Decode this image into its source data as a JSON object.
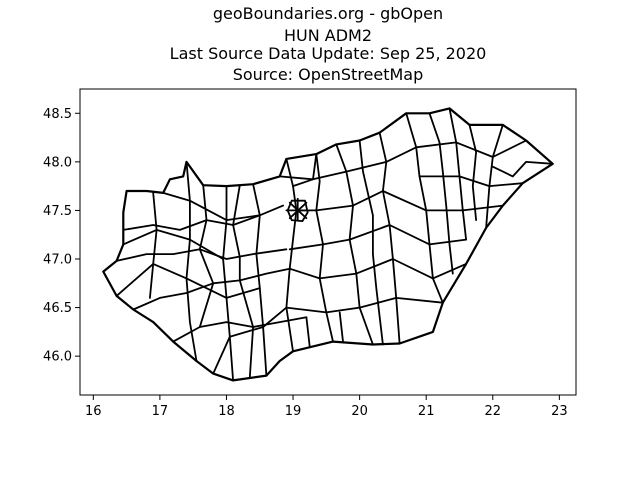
{
  "title_lines": [
    "geoBoundaries.org - gbOpen",
    "HUN ADM2",
    "Last Source Data Update: Sep 25, 2020",
    "Source: OpenStreetMap"
  ],
  "map": {
    "country": "HUN",
    "admin_level": "ADM2",
    "fill_color": "#ffffff",
    "stroke_color": "#000000"
  },
  "chart_data": {
    "type": "map",
    "xlim": [
      15.8,
      23.25
    ],
    "ylim": [
      45.6,
      48.75
    ],
    "x_ticks": [
      16,
      17,
      18,
      19,
      20,
      21,
      22,
      23
    ],
    "y_ticks": [
      46.0,
      46.5,
      47.0,
      47.5,
      48.0,
      48.5
    ],
    "x_tick_labels": [
      "16",
      "17",
      "18",
      "19",
      "20",
      "21",
      "22",
      "23"
    ],
    "y_tick_labels": [
      "46.0",
      "46.5",
      "47.0",
      "47.5",
      "48.0",
      "48.5"
    ],
    "outline": [
      [
        16.15,
        46.87
      ],
      [
        16.35,
        46.98
      ],
      [
        16.45,
        47.15
      ],
      [
        16.45,
        47.3
      ],
      [
        16.45,
        47.48
      ],
      [
        16.5,
        47.7
      ],
      [
        16.8,
        47.7
      ],
      [
        17.05,
        47.68
      ],
      [
        17.15,
        47.82
      ],
      [
        17.35,
        47.85
      ],
      [
        17.4,
        48.0
      ],
      [
        17.65,
        47.76
      ],
      [
        18.0,
        47.75
      ],
      [
        18.4,
        47.77
      ],
      [
        18.8,
        47.85
      ],
      [
        18.9,
        48.03
      ],
      [
        19.35,
        48.08
      ],
      [
        19.65,
        48.18
      ],
      [
        20.0,
        48.22
      ],
      [
        20.3,
        48.3
      ],
      [
        20.7,
        48.5
      ],
      [
        21.05,
        48.5
      ],
      [
        21.35,
        48.55
      ],
      [
        21.65,
        48.38
      ],
      [
        22.15,
        48.38
      ],
      [
        22.5,
        48.22
      ],
      [
        22.9,
        47.98
      ],
      [
        22.45,
        47.78
      ],
      [
        22.15,
        47.55
      ],
      [
        21.9,
        47.32
      ],
      [
        21.6,
        46.95
      ],
      [
        21.25,
        46.55
      ],
      [
        21.1,
        46.25
      ],
      [
        20.6,
        46.13
      ],
      [
        20.2,
        46.12
      ],
      [
        19.6,
        46.15
      ],
      [
        19.0,
        46.05
      ],
      [
        18.8,
        45.95
      ],
      [
        18.6,
        45.8
      ],
      [
        18.1,
        45.75
      ],
      [
        17.8,
        45.82
      ],
      [
        17.55,
        45.95
      ],
      [
        17.2,
        46.15
      ],
      [
        16.9,
        46.35
      ],
      [
        16.6,
        46.48
      ],
      [
        16.35,
        46.62
      ],
      [
        16.15,
        46.87
      ]
    ],
    "internal_boundaries": [
      [
        [
          16.45,
          47.3
        ],
        [
          16.9,
          47.35
        ],
        [
          17.3,
          47.3
        ],
        [
          17.7,
          47.4
        ],
        [
          18.1,
          47.35
        ],
        [
          18.5,
          47.45
        ],
        [
          18.85,
          47.55
        ]
      ],
      [
        [
          16.35,
          46.98
        ],
        [
          16.8,
          47.05
        ],
        [
          17.2,
          47.05
        ],
        [
          17.6,
          47.1
        ],
        [
          18.0,
          47.0
        ],
        [
          18.4,
          47.05
        ],
        [
          18.9,
          47.1
        ]
      ],
      [
        [
          16.6,
          46.48
        ],
        [
          17.0,
          46.6
        ],
        [
          17.4,
          46.65
        ],
        [
          17.8,
          46.75
        ],
        [
          18.2,
          46.78
        ],
        [
          18.6,
          46.85
        ],
        [
          18.95,
          46.9
        ]
      ],
      [
        [
          17.2,
          46.15
        ],
        [
          17.6,
          46.3
        ],
        [
          18.0,
          46.35
        ],
        [
          18.4,
          46.3
        ],
        [
          18.8,
          46.35
        ],
        [
          19.2,
          46.4
        ]
      ],
      [
        [
          16.9,
          47.68
        ],
        [
          16.95,
          47.3
        ],
        [
          16.9,
          46.95
        ],
        [
          16.85,
          46.6
        ]
      ],
      [
        [
          17.4,
          48.0
        ],
        [
          17.45,
          47.6
        ],
        [
          17.45,
          47.2
        ],
        [
          17.4,
          46.8
        ],
        [
          17.45,
          46.35
        ],
        [
          17.55,
          45.95
        ]
      ],
      [
        [
          18.0,
          47.75
        ],
        [
          18.0,
          47.4
        ],
        [
          17.95,
          47.0
        ],
        [
          18.0,
          46.6
        ],
        [
          18.05,
          46.2
        ],
        [
          18.1,
          45.75
        ]
      ],
      [
        [
          18.4,
          47.77
        ],
        [
          18.5,
          47.45
        ],
        [
          18.45,
          47.05
        ],
        [
          18.5,
          46.7
        ],
        [
          18.55,
          46.3
        ],
        [
          18.6,
          45.8
        ]
      ],
      [
        [
          18.9,
          48.03
        ],
        [
          19.0,
          47.75
        ],
        [
          19.05,
          47.5
        ],
        [
          19.0,
          47.2
        ],
        [
          18.95,
          46.9
        ],
        [
          18.9,
          46.5
        ],
        [
          19.0,
          46.05
        ]
      ],
      [
        [
          19.35,
          48.08
        ],
        [
          19.4,
          47.8
        ],
        [
          19.35,
          47.5
        ],
        [
          19.45,
          47.15
        ],
        [
          19.4,
          46.8
        ],
        [
          19.5,
          46.45
        ],
        [
          19.6,
          46.15
        ]
      ],
      [
        [
          19.65,
          48.18
        ],
        [
          19.8,
          47.9
        ],
        [
          19.9,
          47.55
        ],
        [
          19.85,
          47.2
        ],
        [
          19.95,
          46.85
        ],
        [
          20.0,
          46.5
        ],
        [
          20.2,
          46.12
        ]
      ],
      [
        [
          20.3,
          48.3
        ],
        [
          20.4,
          48.0
        ],
        [
          20.35,
          47.7
        ],
        [
          20.45,
          47.35
        ],
        [
          20.5,
          47.0
        ],
        [
          20.55,
          46.6
        ],
        [
          20.6,
          46.13
        ]
      ],
      [
        [
          20.7,
          48.5
        ],
        [
          20.85,
          48.15
        ],
        [
          20.9,
          47.85
        ],
        [
          21.0,
          47.5
        ],
        [
          21.05,
          47.15
        ],
        [
          21.1,
          46.8
        ],
        [
          21.25,
          46.55
        ]
      ],
      [
        [
          21.35,
          48.55
        ],
        [
          21.45,
          48.2
        ],
        [
          21.5,
          47.85
        ],
        [
          21.55,
          47.5
        ],
        [
          21.6,
          47.2
        ]
      ],
      [
        [
          22.15,
          48.38
        ],
        [
          22.0,
          48.05
        ],
        [
          21.95,
          47.75
        ],
        [
          21.9,
          47.32
        ]
      ],
      [
        [
          18.8,
          47.85
        ],
        [
          19.3,
          47.82
        ],
        [
          19.8,
          47.9
        ],
        [
          20.4,
          48.0
        ],
        [
          20.85,
          48.15
        ],
        [
          21.45,
          48.2
        ],
        [
          22.0,
          48.05
        ],
        [
          22.5,
          48.22
        ]
      ],
      [
        [
          19.05,
          47.5
        ],
        [
          19.35,
          47.5
        ],
        [
          19.9,
          47.55
        ],
        [
          20.35,
          47.7
        ],
        [
          21.0,
          47.5
        ],
        [
          21.55,
          47.5
        ],
        [
          22.15,
          47.55
        ]
      ],
      [
        [
          18.95,
          47.1
        ],
        [
          19.45,
          47.15
        ],
        [
          19.85,
          47.2
        ],
        [
          20.45,
          47.35
        ],
        [
          21.05,
          47.15
        ],
        [
          21.6,
          47.2
        ]
      ],
      [
        [
          18.95,
          46.9
        ],
        [
          19.4,
          46.8
        ],
        [
          19.95,
          46.85
        ],
        [
          20.5,
          47.0
        ],
        [
          21.1,
          46.8
        ],
        [
          21.6,
          46.95
        ]
      ],
      [
        [
          18.9,
          46.5
        ],
        [
          19.5,
          46.45
        ],
        [
          20.0,
          46.5
        ],
        [
          20.55,
          46.6
        ],
        [
          21.25,
          46.55
        ]
      ],
      [
        [
          20.9,
          47.85
        ],
        [
          21.5,
          47.85
        ],
        [
          21.95,
          47.75
        ],
        [
          22.45,
          47.78
        ]
      ],
      [
        [
          17.05,
          47.68
        ],
        [
          17.45,
          47.6
        ],
        [
          18.0,
          47.4
        ],
        [
          18.5,
          47.45
        ]
      ],
      [
        [
          16.45,
          47.15
        ],
        [
          16.95,
          47.3
        ],
        [
          17.45,
          47.2
        ],
        [
          17.95,
          47.0
        ]
      ],
      [
        [
          16.35,
          46.62
        ],
        [
          16.9,
          46.95
        ],
        [
          17.4,
          46.8
        ],
        [
          18.0,
          46.6
        ],
        [
          18.5,
          46.7
        ]
      ],
      [
        [
          17.8,
          45.82
        ],
        [
          18.05,
          46.2
        ],
        [
          18.55,
          46.3
        ],
        [
          18.9,
          46.5
        ]
      ],
      [
        [
          17.65,
          47.76
        ],
        [
          17.7,
          47.4
        ],
        [
          17.6,
          47.1
        ],
        [
          17.8,
          46.75
        ],
        [
          17.6,
          46.3
        ]
      ],
      [
        [
          18.2,
          47.76
        ],
        [
          18.1,
          47.35
        ],
        [
          18.2,
          47.02
        ],
        [
          18.2,
          46.78
        ],
        [
          18.4,
          46.3
        ],
        [
          18.35,
          45.78
        ]
      ],
      [
        [
          19.0,
          47.75
        ],
        [
          19.3,
          47.82
        ],
        [
          19.35,
          48.08
        ]
      ],
      [
        [
          20.0,
          48.22
        ],
        [
          20.05,
          47.9
        ],
        [
          20.2,
          47.45
        ],
        [
          20.2,
          47.05
        ],
        [
          20.25,
          46.7
        ],
        [
          20.35,
          46.12
        ]
      ],
      [
        [
          21.05,
          48.5
        ],
        [
          21.2,
          48.2
        ],
        [
          21.25,
          47.9
        ],
        [
          21.3,
          47.55
        ],
        [
          21.35,
          47.15
        ],
        [
          21.4,
          46.85
        ]
      ],
      [
        [
          21.65,
          48.38
        ],
        [
          21.75,
          48.1
        ],
        [
          21.7,
          47.75
        ],
        [
          21.75,
          47.4
        ]
      ],
      [
        [
          22.9,
          47.98
        ],
        [
          22.5,
          48.0
        ],
        [
          22.3,
          47.85
        ],
        [
          22.0,
          47.95
        ]
      ],
      [
        [
          19.2,
          46.4
        ],
        [
          19.25,
          46.1
        ]
      ],
      [
        [
          19.7,
          46.45
        ],
        [
          19.75,
          46.15
        ]
      ]
    ],
    "budapest_cluster": {
      "center": [
        19.07,
        47.5
      ],
      "spokes": [
        [
          [
            18.95,
            47.58
          ],
          [
            19.2,
            47.42
          ]
        ],
        [
          [
            18.95,
            47.42
          ],
          [
            19.2,
            47.58
          ]
        ],
        [
          [
            18.9,
            47.5
          ],
          [
            19.25,
            47.5
          ]
        ],
        [
          [
            19.07,
            47.4
          ],
          [
            19.07,
            47.62
          ]
        ],
        [
          [
            18.98,
            47.6
          ],
          [
            19.18,
            47.6
          ],
          [
            19.22,
            47.48
          ],
          [
            19.14,
            47.39
          ],
          [
            18.98,
            47.4
          ],
          [
            18.92,
            47.5
          ],
          [
            18.98,
            47.6
          ]
        ]
      ]
    }
  }
}
